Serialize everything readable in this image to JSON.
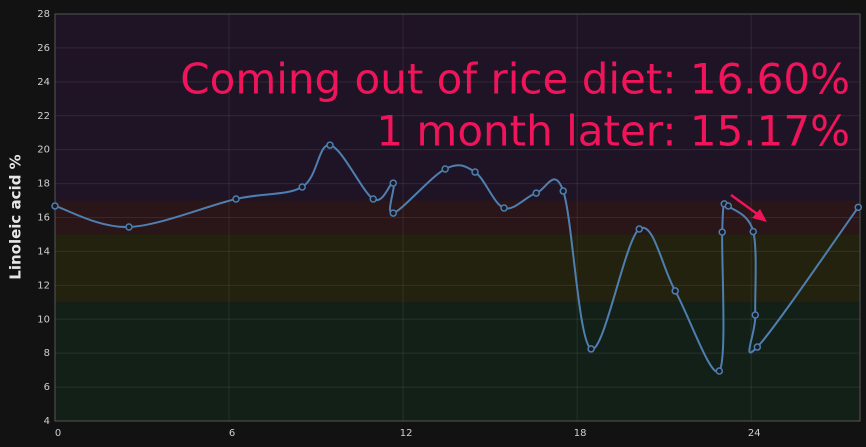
{
  "chart_data": {
    "type": "line",
    "y_label": "Linoleic acid %",
    "annotations": [
      "Coming out of rice diet: 16.60%",
      "1 month later: 15.17%"
    ],
    "x": [
      0,
      2.55,
      6.24,
      8.52,
      9.48,
      10.97,
      11.66,
      11.66,
      13.45,
      14.48,
      15.48,
      16.59,
      17.52,
      18.48,
      20.14,
      21.38,
      22.9,
      23.0,
      23.07,
      23.21,
      24.07,
      24.14,
      24.21,
      27.69
    ],
    "series": [
      {
        "name": "Linoleic acid",
        "color": "#4f7fb0",
        "values": [
          16.68,
          15.44,
          17.09,
          17.8,
          20.27,
          17.09,
          18.03,
          16.26,
          18.86,
          18.68,
          16.56,
          17.44,
          17.56,
          8.25,
          15.32,
          11.67,
          6.95,
          15.14,
          16.8,
          16.68,
          15.17,
          10.25,
          8.36,
          16.6
        ]
      }
    ],
    "bands": [
      {
        "from": 17,
        "to": 28,
        "color": "#1f1425"
      },
      {
        "from": 15,
        "to": 17,
        "color": "#2a1519"
      },
      {
        "from": 11,
        "to": 15,
        "color": "#22220f"
      },
      {
        "from": 4,
        "to": 11,
        "color": "#132018"
      }
    ],
    "xlim": [
      0,
      27.75
    ],
    "ylim": [
      4,
      28
    ],
    "xticks": [
      0,
      6,
      12,
      18,
      24
    ],
    "yticks": [
      4,
      6,
      8,
      10,
      12,
      14,
      16,
      18,
      20,
      22,
      24,
      26,
      28
    ],
    "grid": true
  }
}
